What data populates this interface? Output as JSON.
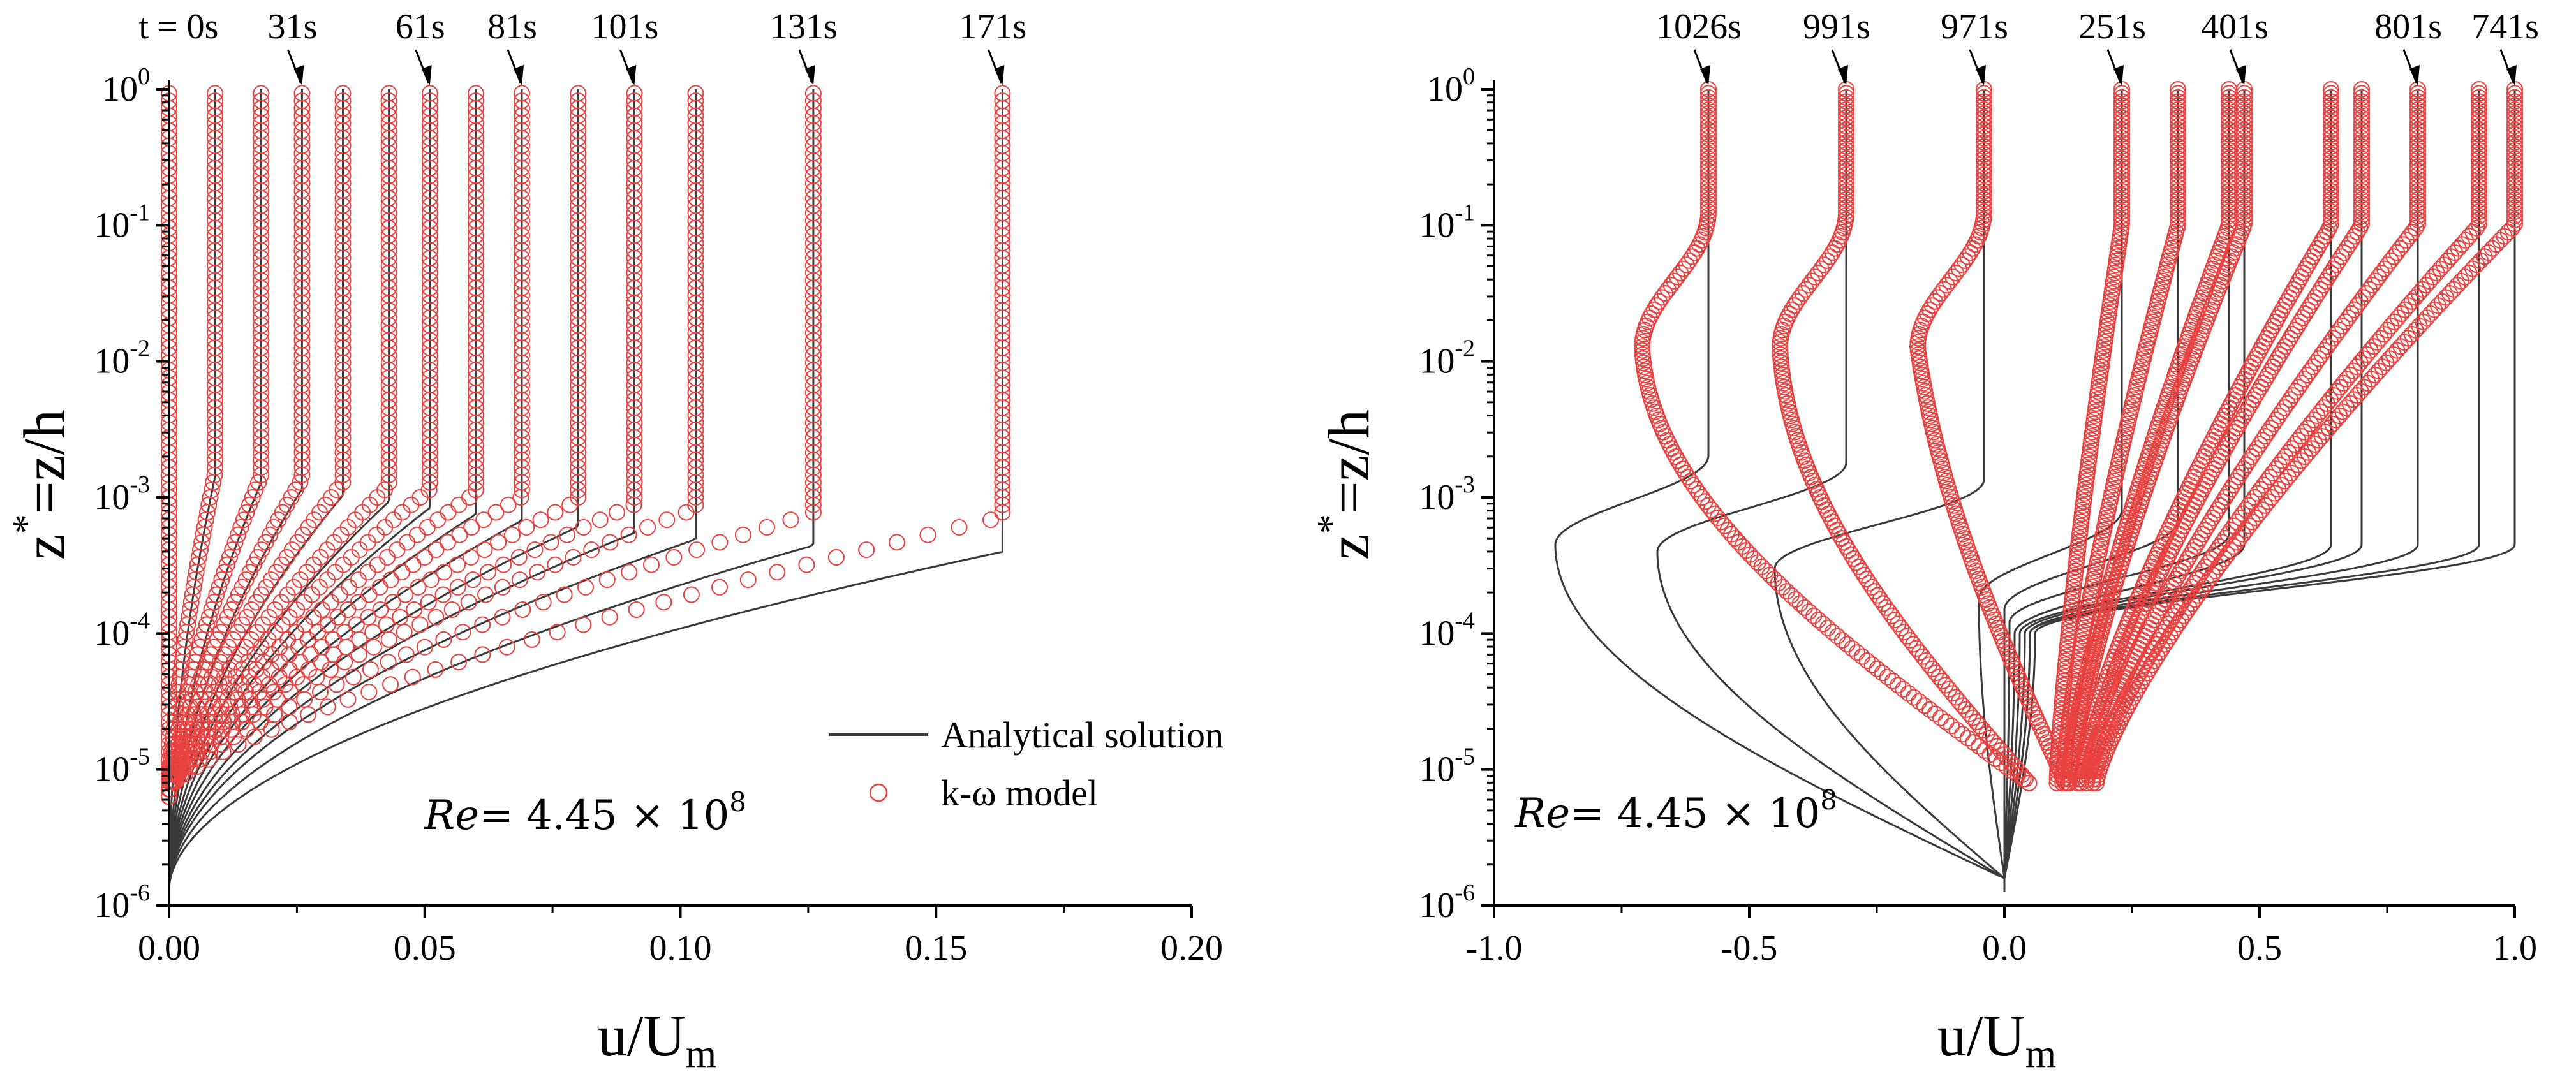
{
  "chart_data": [
    {
      "type": "line",
      "panel": "left",
      "xlabel": "u/U",
      "xlabel_sub": "m",
      "ylabel_z": "z",
      "ylabel_rest": "=z/h",
      "ylabel_sup": "*",
      "xlim": [
        0,
        0.2
      ],
      "xticks": [
        0,
        0.05,
        0.1,
        0.15,
        0.2
      ],
      "xtick_labels": [
        "0.00",
        "0.05",
        "0.10",
        "0.15",
        "0.20"
      ],
      "ylim": [
        1e-06,
        1
      ],
      "yscale": "log",
      "ytick_exponents": [
        "0",
        "-1",
        "-2",
        "-3",
        "-4",
        "-5",
        "-6"
      ],
      "ytick_base": "10",
      "annotation": {
        "re_label": "Re",
        "re_eq": "= 4.45 × 10",
        "re_exp": "8"
      },
      "legend": {
        "position": "lower-right",
        "analytical": "Analytical solution",
        "model": "k-ω model"
      },
      "time_labels": [
        "t = 0s",
        "31s",
        "61s",
        "81s",
        "101s",
        "131s",
        "171s"
      ],
      "label_u": [
        0.0,
        0.026,
        0.051,
        0.069,
        0.091,
        0.126,
        0.163
      ],
      "series_u_top": [
        0.0,
        0.009,
        0.018,
        0.026,
        0.034,
        0.043,
        0.051,
        0.06,
        0.069,
        0.08,
        0.091,
        0.103,
        0.126,
        0.163
      ]
    },
    {
      "type": "line",
      "panel": "right",
      "xlabel": "u/U",
      "xlabel_sub": "m",
      "ylabel_z": "z",
      "ylabel_rest": "=z/h",
      "ylabel_sup": "*",
      "xlim": [
        -1,
        1
      ],
      "xticks": [
        -1,
        -0.5,
        0,
        0.5,
        1
      ],
      "xtick_labels": [
        "-1.0",
        "-0.5",
        "0.0",
        "0.5",
        "1.0"
      ],
      "ylim": [
        1e-06,
        1
      ],
      "yscale": "log",
      "ytick_exponents": [
        "0",
        "-1",
        "-2",
        "-3",
        "-4",
        "-5",
        "-6"
      ],
      "ytick_base": "10",
      "annotation": {
        "re_label": "Re",
        "re_eq": "= 4.45 × 10",
        "re_exp": "8"
      },
      "time_labels": [
        "1026s",
        "991s",
        "971s",
        "251s",
        "401s",
        "801s",
        "741s"
      ],
      "label_u": [
        -0.58,
        -0.31,
        -0.04,
        0.23,
        0.47,
        0.81,
        1.0
      ],
      "series": [
        {
          "u_top": -0.58,
          "z_peak": 0.00045,
          "u_peak": -0.88,
          "shape": "negative"
        },
        {
          "u_top": -0.31,
          "z_peak": 0.0004,
          "u_peak": -0.68,
          "shape": "negative"
        },
        {
          "u_top": -0.04,
          "z_peak": 0.0003,
          "u_peak": -0.45,
          "shape": "negative"
        },
        {
          "u_top": 0.23,
          "z_peak": 0.00018,
          "u_peak": -0.05,
          "shape": "positive"
        },
        {
          "u_top": 0.34,
          "z_peak": 0.00015,
          "u_peak": 0.0,
          "shape": "positive"
        },
        {
          "u_top": 0.44,
          "z_peak": 0.00012,
          "u_peak": 0.01,
          "shape": "positive"
        },
        {
          "u_top": 0.47,
          "z_peak": 0.0001,
          "u_peak": 0.02,
          "shape": "positive"
        },
        {
          "u_top": 0.64,
          "z_peak": 0.0001,
          "u_peak": 0.03,
          "shape": "positive"
        },
        {
          "u_top": 0.7,
          "z_peak": 0.0001,
          "u_peak": 0.04,
          "shape": "positive"
        },
        {
          "u_top": 0.81,
          "z_peak": 0.0001,
          "u_peak": 0.05,
          "shape": "positive"
        },
        {
          "u_top": 0.93,
          "z_peak": 0.0001,
          "u_peak": 0.05,
          "shape": "positive"
        },
        {
          "u_top": 1.0,
          "z_peak": 0.0001,
          "u_peak": 0.06,
          "shape": "positive"
        }
      ]
    }
  ],
  "colors": {
    "analytical": "#3a3a3a",
    "model": "#e8413f",
    "axis": "#000000"
  }
}
